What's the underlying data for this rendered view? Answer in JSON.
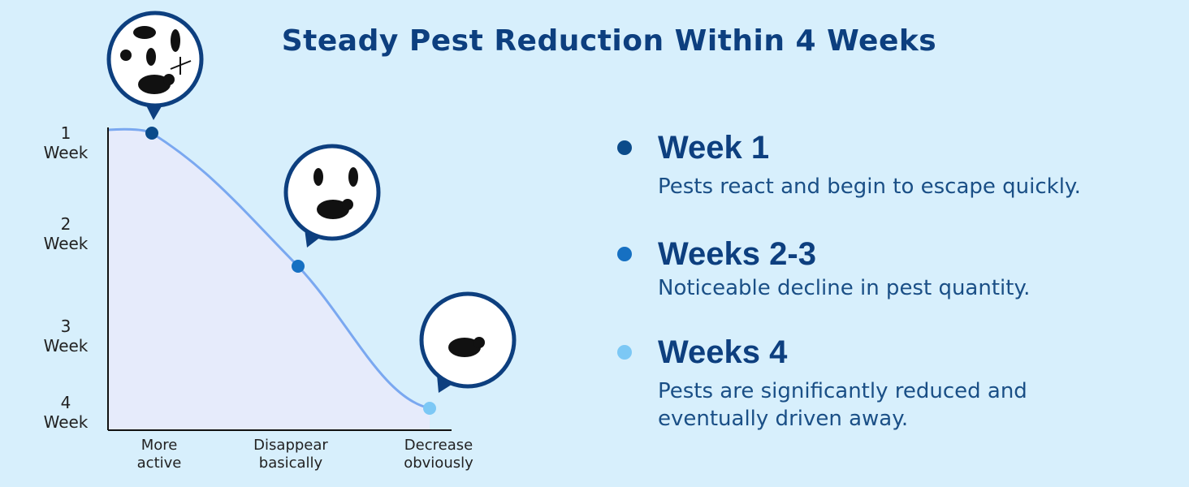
{
  "title": "Steady Pest Reduction Within 4 Weeks",
  "y_labels": [
    [
      "1",
      "Week"
    ],
    [
      "2",
      "Week"
    ],
    [
      "3",
      "Week"
    ],
    [
      "4",
      "Week"
    ]
  ],
  "x_labels": [
    [
      "More",
      "active"
    ],
    [
      "Disappear",
      "basically"
    ],
    [
      "Decrease",
      "obviously"
    ]
  ],
  "items": [
    {
      "heading": "Week 1",
      "text": "Pests react and begin to escape quickly."
    },
    {
      "heading": "Weeks 2-3",
      "text": "Noticeable decline in pest quantity."
    },
    {
      "heading": "Weeks 4",
      "text": "Pests are significantly reduced and eventually driven away."
    }
  ]
}
